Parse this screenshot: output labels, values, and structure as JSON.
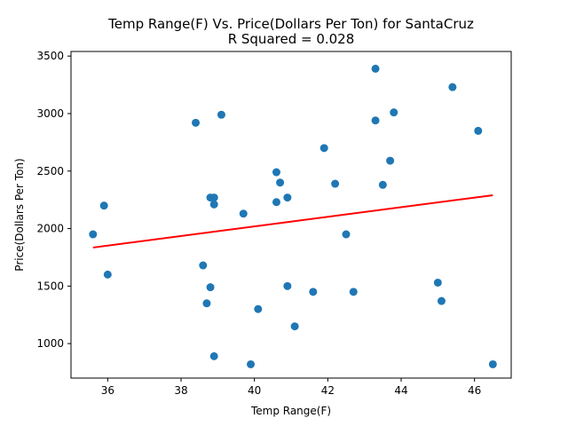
{
  "chart_data": {
    "type": "scatter",
    "title": "Temp Range(F) Vs. Price(Dollars Per Ton) for SantaCruz",
    "subtitle": "R Squared =  0.028",
    "xlabel": "Temp Range(F)",
    "ylabel": "Price(Dollars Per Ton)",
    "xlim": [
      35.0,
      47.0
    ],
    "ylim": [
      700,
      3540
    ],
    "xticks": [
      36,
      38,
      40,
      42,
      44,
      46
    ],
    "yticks": [
      1000,
      1500,
      2000,
      2500,
      3000,
      3500
    ],
    "grid": false,
    "point_color": "#1f77b4",
    "line_color": "#ff0000",
    "points": [
      {
        "x": 35.6,
        "y": 1950
      },
      {
        "x": 35.9,
        "y": 2200
      },
      {
        "x": 36.0,
        "y": 1600
      },
      {
        "x": 38.4,
        "y": 2920
      },
      {
        "x": 38.6,
        "y": 1680
      },
      {
        "x": 38.7,
        "y": 1350
      },
      {
        "x": 38.8,
        "y": 2270
      },
      {
        "x": 38.8,
        "y": 1490
      },
      {
        "x": 38.9,
        "y": 2270
      },
      {
        "x": 38.9,
        "y": 2210
      },
      {
        "x": 38.9,
        "y": 890
      },
      {
        "x": 39.1,
        "y": 2990
      },
      {
        "x": 39.7,
        "y": 2130
      },
      {
        "x": 39.9,
        "y": 820
      },
      {
        "x": 40.1,
        "y": 1300
      },
      {
        "x": 40.6,
        "y": 2490
      },
      {
        "x": 40.6,
        "y": 2230
      },
      {
        "x": 40.7,
        "y": 2400
      },
      {
        "x": 40.9,
        "y": 2270
      },
      {
        "x": 40.9,
        "y": 1500
      },
      {
        "x": 41.1,
        "y": 1150
      },
      {
        "x": 41.6,
        "y": 1450
      },
      {
        "x": 41.9,
        "y": 2700
      },
      {
        "x": 42.2,
        "y": 2390
      },
      {
        "x": 42.5,
        "y": 1950
      },
      {
        "x": 42.7,
        "y": 1450
      },
      {
        "x": 43.3,
        "y": 3390
      },
      {
        "x": 43.3,
        "y": 2940
      },
      {
        "x": 43.5,
        "y": 2380
      },
      {
        "x": 43.7,
        "y": 2590
      },
      {
        "x": 43.8,
        "y": 3010
      },
      {
        "x": 45.0,
        "y": 1530
      },
      {
        "x": 45.1,
        "y": 1370
      },
      {
        "x": 45.4,
        "y": 3230
      },
      {
        "x": 46.1,
        "y": 2850
      },
      {
        "x": 46.5,
        "y": 820
      }
    ],
    "regression_line": {
      "x": [
        35.6,
        46.5
      ],
      "y": [
        1835,
        2290
      ]
    }
  }
}
